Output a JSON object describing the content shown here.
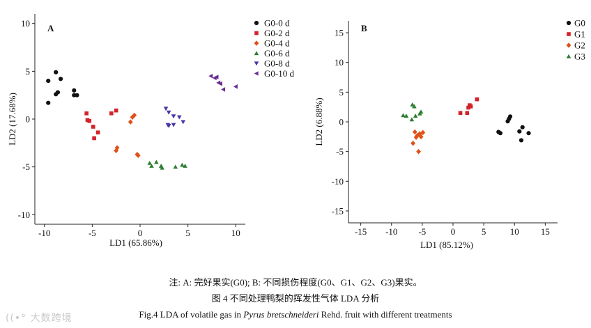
{
  "chart_data": [
    {
      "panel": "A",
      "type": "scatter",
      "xlabel": "LD1 (65.86%)",
      "ylabel": "LD2 (17.68%)",
      "xlim": [
        -11,
        11
      ],
      "ylim": [
        -11,
        11
      ],
      "xticks": [
        -10,
        -5,
        0,
        5,
        10
      ],
      "yticks": [
        -10,
        -5,
        0,
        5,
        10
      ],
      "legend": "top-right",
      "series": [
        {
          "name": "G0-0 d",
          "marker": "circle",
          "color": "#111111",
          "points": [
            [
              -9.6,
              4.0
            ],
            [
              -8.8,
              4.9
            ],
            [
              -8.3,
              4.2
            ],
            [
              -8.8,
              2.6
            ],
            [
              -8.6,
              2.8
            ],
            [
              -9.6,
              1.7
            ],
            [
              -6.9,
              3.0
            ],
            [
              -6.9,
              2.5
            ],
            [
              -6.6,
              2.5
            ]
          ]
        },
        {
          "name": "G0-2 d",
          "marker": "square",
          "color": "#d2232a",
          "points": [
            [
              -5.6,
              0.6
            ],
            [
              -5.5,
              -0.1
            ],
            [
              -5.3,
              -0.2
            ],
            [
              -4.9,
              -0.8
            ],
            [
              -4.4,
              -1.4
            ],
            [
              -4.8,
              -2.0
            ],
            [
              -3.0,
              0.6
            ],
            [
              -2.5,
              0.9
            ]
          ]
        },
        {
          "name": "G0-4 d",
          "marker": "diamond",
          "color": "#e0511a",
          "points": [
            [
              -2.4,
              -3.0
            ],
            [
              -2.5,
              -3.3
            ],
            [
              -1.0,
              -0.3
            ],
            [
              -0.8,
              0.2
            ],
            [
              -0.6,
              0.4
            ],
            [
              -0.3,
              -3.7
            ],
            [
              -0.2,
              -3.8
            ]
          ]
        },
        {
          "name": "G0-6 d",
          "marker": "triangle-up",
          "color": "#2e7d32",
          "points": [
            [
              1.0,
              -4.6
            ],
            [
              1.2,
              -4.9
            ],
            [
              1.7,
              -4.5
            ],
            [
              2.2,
              -4.9
            ],
            [
              2.3,
              -5.1
            ],
            [
              3.7,
              -5.0
            ],
            [
              4.4,
              -4.8
            ],
            [
              4.7,
              -4.9
            ]
          ]
        },
        {
          "name": "G0-8 d",
          "marker": "triangle-down",
          "color": "#4a35a8",
          "points": [
            [
              2.7,
              1.1
            ],
            [
              3.0,
              0.7
            ],
            [
              3.5,
              0.3
            ],
            [
              4.1,
              0.2
            ],
            [
              3.0,
              -0.7
            ],
            [
              3.5,
              -0.6
            ],
            [
              2.9,
              -0.6
            ],
            [
              4.5,
              -0.3
            ]
          ]
        },
        {
          "name": "G0-10 d",
          "marker": "triangle-left",
          "color": "#6a2c91",
          "points": [
            [
              7.4,
              4.5
            ],
            [
              7.8,
              4.3
            ],
            [
              8.0,
              4.4
            ],
            [
              8.2,
              3.8
            ],
            [
              8.4,
              3.7
            ],
            [
              8.7,
              3.1
            ],
            [
              10.0,
              3.4
            ]
          ]
        }
      ]
    },
    {
      "panel": "B",
      "type": "scatter",
      "xlabel": "LD1 (85.12%)",
      "ylabel": "LD2 (6.88%)",
      "xlim": [
        -17,
        17
      ],
      "ylim": [
        -17,
        17
      ],
      "xticks": [
        -15,
        -10,
        -5,
        0,
        5,
        10,
        15
      ],
      "yticks": [
        -15,
        -10,
        -5,
        0,
        5,
        10,
        15
      ],
      "legend": "top-right",
      "series": [
        {
          "name": "G0",
          "marker": "circle",
          "color": "#111111",
          "points": [
            [
              7.4,
              -1.7
            ],
            [
              7.7,
              -1.9
            ],
            [
              8.9,
              0.1
            ],
            [
              9.1,
              0.5
            ],
            [
              9.3,
              0.9
            ],
            [
              10.8,
              -1.6
            ],
            [
              11.3,
              -0.9
            ],
            [
              11.1,
              -3.1
            ],
            [
              12.3,
              -1.9
            ]
          ]
        },
        {
          "name": "G1",
          "marker": "square",
          "color": "#d2232a",
          "points": [
            [
              1.2,
              1.5
            ],
            [
              2.3,
              1.5
            ],
            [
              2.5,
              2.4
            ],
            [
              2.7,
              2.8
            ],
            [
              2.9,
              2.6
            ],
            [
              3.9,
              3.8
            ]
          ]
        },
        {
          "name": "G2",
          "marker": "diamond",
          "color": "#e0511a",
          "points": [
            [
              -6.2,
              -1.7
            ],
            [
              -5.8,
              -2.3
            ],
            [
              -5.4,
              -2.0
            ],
            [
              -6.0,
              -2.6
            ],
            [
              -5.2,
              -2.5
            ],
            [
              -4.9,
              -1.8
            ],
            [
              -6.5,
              -3.6
            ],
            [
              -5.6,
              -5.0
            ]
          ]
        },
        {
          "name": "G3",
          "marker": "triangle-up",
          "color": "#2e7d32",
          "points": [
            [
              -8.1,
              1.1
            ],
            [
              -7.6,
              1.0
            ],
            [
              -6.6,
              2.9
            ],
            [
              -6.3,
              2.6
            ],
            [
              -6.1,
              1.0
            ],
            [
              -5.4,
              1.4
            ],
            [
              -5.2,
              1.7
            ],
            [
              -6.7,
              0.4
            ]
          ]
        }
      ]
    }
  ],
  "caption": {
    "note": "注: A:  完好果实(G0); B:  不同损伤程度(G0、G1、G2、G3)果实。",
    "title_cn": "图 4    不同处理鸭梨的挥发性气体 LDA 分析",
    "title_en_prefix": "Fig.4    LDA of volatile gas in ",
    "title_en_species": "Pyrus bretschneideri",
    "title_en_suffix": " Rehd. fruit with different treatments"
  },
  "watermark": "大数跨境"
}
